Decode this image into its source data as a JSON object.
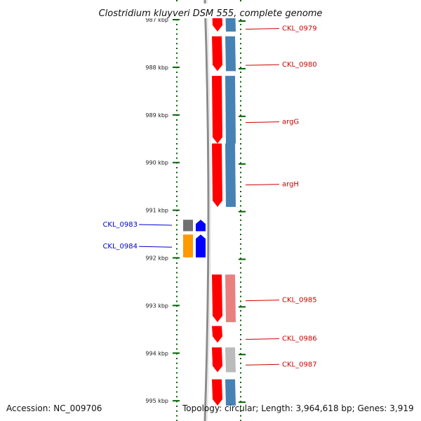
{
  "title": "Clostridium kluyveri DSM 555, complete genome",
  "footer": {
    "accession": "Accession: NC_009706",
    "summary": "Topology: circular; Length: 3,964,618 bp; Genes: 3,919"
  },
  "colors": {
    "forward_cds": "#ff0000",
    "forward_cog_blue": "#4682b4",
    "forward_cog_pink": "#e88080",
    "forward_cog_grey": "#bbbbbb",
    "reverse_cds": "#0000ff",
    "reverse_grey": "#707070",
    "reverse_orange": "#ff9900",
    "tick_green": "#006400",
    "label_red": "#cc0000",
    "label_blue": "#0000cc"
  },
  "axis": {
    "unit": "kbp",
    "view_start_kbp": 986.7,
    "view_end_kbp": 995.1,
    "major_ticks": [
      {
        "kbp": 987,
        "label": "987 kbp"
      },
      {
        "kbp": 988,
        "label": "988 kbp"
      },
      {
        "kbp": 989,
        "label": "989 kbp"
      },
      {
        "kbp": 990,
        "label": "990 kbp"
      },
      {
        "kbp": 991,
        "label": "991 kbp"
      },
      {
        "kbp": 992,
        "label": "992 kbp"
      },
      {
        "kbp": 993,
        "label": "993 kbp"
      },
      {
        "kbp": 994,
        "label": "994 kbp"
      },
      {
        "kbp": 995,
        "label": "995 kbp"
      }
    ]
  },
  "forward_genes": [
    {
      "label": "CKL_0979",
      "start_kbp": 986.7,
      "end_kbp": 987.25,
      "cog_color": "forward_cog_blue",
      "label_kbp": 987.2
    },
    {
      "label": "CKL_0980",
      "start_kbp": 987.35,
      "end_kbp": 988.08,
      "cog_color": "forward_cog_blue",
      "label_kbp": 987.96
    },
    {
      "label": "argG",
      "start_kbp": 988.18,
      "end_kbp": 989.6,
      "cog_color": "forward_cog_blue",
      "label_kbp": 989.16
    },
    {
      "label": "argH",
      "start_kbp": 989.6,
      "end_kbp": 990.93,
      "cog_color": "forward_cog_blue",
      "label_kbp": 990.47
    },
    {
      "label": "CKL_0985",
      "start_kbp": 992.35,
      "end_kbp": 993.35,
      "cog_color": "forward_cog_pink",
      "label_kbp": 992.9
    },
    {
      "label": "CKL_0986",
      "start_kbp": 993.43,
      "end_kbp": 993.78,
      "cog_color": null,
      "label_kbp": 993.71
    },
    {
      "label": "CKL_0987",
      "start_kbp": 993.88,
      "end_kbp": 994.4,
      "cog_color": "forward_cog_grey",
      "label_kbp": 994.25
    },
    {
      "label": "",
      "start_kbp": 994.55,
      "end_kbp": 995.1,
      "cog_color": "forward_cog_blue",
      "label_kbp": null
    }
  ],
  "reverse_genes": [
    {
      "label": "CKL_0983",
      "start_kbp": 991.2,
      "end_kbp": 991.44,
      "box_color": "reverse_grey",
      "label_kbp": 991.3
    },
    {
      "label": "CKL_0984",
      "start_kbp": 991.51,
      "end_kbp": 991.99,
      "box_color": "reverse_orange",
      "label_kbp": 991.76
    }
  ]
}
